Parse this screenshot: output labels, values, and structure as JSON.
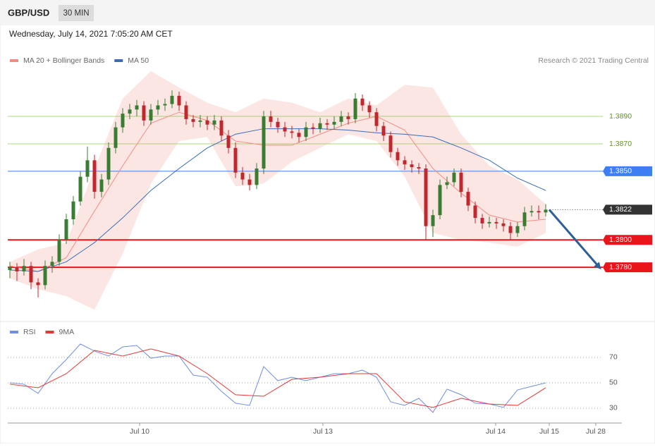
{
  "header": {
    "symbol": "GBP/USD",
    "timeframe": "30 MIN",
    "timestamp": "Wednesday, July 14, 2021 7:05:20 AM CET",
    "credit": "Research © 2021 Trading Central"
  },
  "chart_data": [
    {
      "type": "candlestick",
      "xlim": [
        -0.3,
        86.8
      ],
      "ylim": [
        1.3741,
        1.3926
      ],
      "up_color": "#3a7d32",
      "down_color": "#c0282d",
      "candles": [
        [
          1.3778,
          1.3784,
          1.3772,
          1.378
        ],
        [
          1.378,
          1.3783,
          1.377,
          1.3777
        ],
        [
          1.3777,
          1.3786,
          1.3774,
          1.3781
        ],
        [
          1.3781,
          1.3784,
          1.3764,
          1.3769
        ],
        [
          1.3769,
          1.3772,
          1.3758,
          1.3767
        ],
        [
          1.3767,
          1.3785,
          1.3764,
          1.3781
        ],
        [
          1.3781,
          1.3788,
          1.3776,
          1.3784
        ],
        [
          1.3784,
          1.3804,
          1.3781,
          1.38
        ],
        [
          1.38,
          1.3819,
          1.3797,
          1.3815
        ],
        [
          1.3815,
          1.3832,
          1.3811,
          1.3828
        ],
        [
          1.3828,
          1.385,
          1.3825,
          1.3846
        ],
        [
          1.3846,
          1.3868,
          1.3842,
          1.3858
        ],
        [
          1.3858,
          1.3862,
          1.383,
          1.3835
        ],
        [
          1.3835,
          1.3848,
          1.3831,
          1.3844
        ],
        [
          1.3844,
          1.3871,
          1.384,
          1.3867
        ],
        [
          1.3867,
          1.3886,
          1.3863,
          1.3882
        ],
        [
          1.3882,
          1.3896,
          1.3878,
          1.3892
        ],
        [
          1.3892,
          1.3899,
          1.3888,
          1.3895
        ],
        [
          1.3895,
          1.3902,
          1.389,
          1.3898
        ],
        [
          1.3898,
          1.3901,
          1.3883,
          1.3887
        ],
        [
          1.3887,
          1.3899,
          1.3884,
          1.3895
        ],
        [
          1.3895,
          1.3902,
          1.3891,
          1.3898
        ],
        [
          1.3898,
          1.3903,
          1.3894,
          1.3899
        ],
        [
          1.3899,
          1.3909,
          1.3896,
          1.3905
        ],
        [
          1.3905,
          1.3908,
          1.3894,
          1.3898
        ],
        [
          1.3898,
          1.3901,
          1.3884,
          1.3888
        ],
        [
          1.3888,
          1.3891,
          1.3882,
          1.3886
        ],
        [
          1.3886,
          1.3891,
          1.3882,
          1.3887
        ],
        [
          1.3887,
          1.389,
          1.388,
          1.3884
        ],
        [
          1.3884,
          1.3891,
          1.388,
          1.3887
        ],
        [
          1.3887,
          1.389,
          1.3872,
          1.3876
        ],
        [
          1.3876,
          1.388,
          1.3863,
          1.3867
        ],
        [
          1.3867,
          1.3871,
          1.3845,
          1.3849
        ],
        [
          1.3849,
          1.3853,
          1.384,
          1.3844
        ],
        [
          1.3844,
          1.3848,
          1.3836,
          1.384
        ],
        [
          1.384,
          1.3856,
          1.3837,
          1.3852
        ],
        [
          1.3852,
          1.3894,
          1.3848,
          1.389
        ],
        [
          1.389,
          1.3894,
          1.3882,
          1.3886
        ],
        [
          1.3886,
          1.3889,
          1.3878,
          1.3882
        ],
        [
          1.3882,
          1.3886,
          1.3875,
          1.3879
        ],
        [
          1.3879,
          1.3883,
          1.3874,
          1.3878
        ],
        [
          1.3878,
          1.3881,
          1.3871,
          1.3875
        ],
        [
          1.3875,
          1.3886,
          1.3872,
          1.3882
        ],
        [
          1.3882,
          1.3885,
          1.3877,
          1.3881
        ],
        [
          1.3881,
          1.3889,
          1.3878,
          1.3885
        ],
        [
          1.3885,
          1.3888,
          1.388,
          1.3884
        ],
        [
          1.3884,
          1.389,
          1.3881,
          1.3886
        ],
        [
          1.3886,
          1.3894,
          1.3883,
          1.389
        ],
        [
          1.389,
          1.3893,
          1.3884,
          1.3888
        ],
        [
          1.3888,
          1.3907,
          1.3885,
          1.3903
        ],
        [
          1.3903,
          1.3906,
          1.3894,
          1.3898
        ],
        [
          1.3898,
          1.3901,
          1.3889,
          1.3893
        ],
        [
          1.3893,
          1.3896,
          1.3879,
          1.3883
        ],
        [
          1.3883,
          1.3886,
          1.3872,
          1.3876
        ],
        [
          1.3876,
          1.3879,
          1.386,
          1.3864
        ],
        [
          1.3864,
          1.3867,
          1.3854,
          1.3858
        ],
        [
          1.3858,
          1.3861,
          1.3851,
          1.3855
        ],
        [
          1.3855,
          1.3858,
          1.3849,
          1.3853
        ],
        [
          1.3853,
          1.3856,
          1.3848,
          1.3852
        ],
        [
          1.3852,
          1.3855,
          1.38,
          1.381
        ],
        [
          1.381,
          1.3822,
          1.3802,
          1.3818
        ],
        [
          1.3818,
          1.3844,
          1.3815,
          1.384
        ],
        [
          1.384,
          1.3846,
          1.3837,
          1.3842
        ],
        [
          1.3842,
          1.3852,
          1.3839,
          1.3849
        ],
        [
          1.3849,
          1.3852,
          1.3831,
          1.3835
        ],
        [
          1.3835,
          1.3838,
          1.3821,
          1.3825
        ],
        [
          1.3825,
          1.3828,
          1.3812,
          1.3816
        ],
        [
          1.3816,
          1.3819,
          1.3808,
          1.3812
        ],
        [
          1.3812,
          1.3817,
          1.3809,
          1.3813
        ],
        [
          1.3813,
          1.3816,
          1.3808,
          1.3812
        ],
        [
          1.3812,
          1.3815,
          1.3806,
          1.381
        ],
        [
          1.381,
          1.3813,
          1.38,
          1.3805
        ],
        [
          1.3805,
          1.3813,
          1.3802,
          1.381
        ],
        [
          1.381,
          1.3824,
          1.3807,
          1.382
        ],
        [
          1.382,
          1.3825,
          1.3817,
          1.3821
        ],
        [
          1.3821,
          1.3825,
          1.3815,
          1.382
        ],
        [
          1.382,
          1.3826,
          1.3817,
          1.3822
        ]
      ],
      "series": [
        {
          "name": "MA 20 + Bollinger Bands",
          "color": "#f28b82",
          "x": [
            0,
            4,
            8,
            12,
            16,
            20,
            24,
            28,
            32,
            36,
            40,
            44,
            48,
            52,
            56,
            60,
            64,
            68,
            72,
            76
          ],
          "values": [
            1.3781,
            1.3777,
            1.3787,
            1.3821,
            1.3854,
            1.3885,
            1.3893,
            1.3887,
            1.3872,
            1.3869,
            1.3869,
            1.3877,
            1.3885,
            1.389,
            1.388,
            1.3852,
            1.3834,
            1.3818,
            1.3813,
            1.3815
          ],
          "upper": [
            1.3784,
            1.3793,
            1.3798,
            1.3852,
            1.3903,
            1.3923,
            1.3911,
            1.39,
            1.3893,
            1.3903,
            1.39,
            1.3893,
            1.3903,
            1.3898,
            1.3913,
            1.3911,
            1.3877,
            1.3854,
            1.3844,
            1.3826
          ],
          "lower": [
            1.3772,
            1.3764,
            1.3759,
            1.3749,
            1.379,
            1.3841,
            1.3872,
            1.3875,
            1.3839,
            1.3841,
            1.3857,
            1.3867,
            1.3877,
            1.3872,
            1.3846,
            1.3805,
            1.38,
            1.3798,
            1.3795,
            1.3805
          ]
        },
        {
          "name": "MA 50",
          "color": "#3b6db5",
          "x": [
            0,
            4,
            8,
            12,
            16,
            20,
            24,
            28,
            32,
            36,
            40,
            44,
            48,
            52,
            56,
            60,
            64,
            68,
            72,
            76
          ],
          "values": [
            1.3778,
            1.3777,
            1.3784,
            1.3798,
            1.3816,
            1.3836,
            1.3852,
            1.3867,
            1.3877,
            1.3881,
            1.3881,
            1.3881,
            1.388,
            1.3878,
            1.3877,
            1.3875,
            1.3867,
            1.3858,
            1.3845,
            1.3836
          ]
        }
      ],
      "levels": [
        {
          "value": 1.389,
          "label": "1.3890",
          "color": "#8bc34a",
          "box": false,
          "style": "solid"
        },
        {
          "value": 1.387,
          "label": "1.3870",
          "color": "#8bc34a",
          "box": false,
          "style": "solid"
        },
        {
          "value": 1.385,
          "label": "1.3850",
          "color": "#3d7ef2",
          "box": true,
          "style": "solid"
        },
        {
          "value": 1.3822,
          "label": "1.3822",
          "color": "#333333",
          "box": true,
          "style": "dotted"
        },
        {
          "value": 1.38,
          "label": "1.3800",
          "color": "#e8161b",
          "box": true,
          "style": "thick"
        },
        {
          "value": 1.378,
          "label": "1.3780",
          "color": "#e8161b",
          "box": true,
          "style": "thick"
        }
      ],
      "forecast": {
        "x": [
          76.5,
          83.6
        ],
        "values": [
          1.3822,
          1.378
        ],
        "color": "#2f5f98"
      }
    },
    {
      "type": "line",
      "xlim": [
        -0.3,
        86.8
      ],
      "ylim": [
        18.3,
        96.1
      ],
      "yticks": [
        30,
        50,
        70
      ],
      "grid": true,
      "xticks": [
        {
          "value": 18.4,
          "label": "Jul 10"
        },
        {
          "value": 44.4,
          "label": "Jul 13"
        },
        {
          "value": 68.9,
          "label": "Jul 14"
        },
        {
          "value": 76.5,
          "label": "Jul 15"
        },
        {
          "value": 83.1,
          "label": "Jul 28"
        }
      ],
      "series": [
        {
          "name": "RSI",
          "color": "#6f8fe0",
          "x": [
            0,
            2,
            4,
            6,
            8,
            10,
            12,
            14,
            16,
            18,
            20,
            22,
            24,
            26,
            28,
            30,
            32,
            34,
            36,
            38,
            40,
            42,
            44,
            46,
            48,
            50,
            52,
            54,
            56,
            58,
            60,
            62,
            64,
            66,
            68,
            70,
            72,
            74,
            76
          ],
          "values": [
            50,
            48.9,
            41.7,
            57.2,
            68.3,
            80.6,
            75,
            71.1,
            78.3,
            79.4,
            69.4,
            71.1,
            71.1,
            56.1,
            54.4,
            43.3,
            33.9,
            32.2,
            62.8,
            51.7,
            54.4,
            51.7,
            54.4,
            57.2,
            57.2,
            60,
            54.4,
            35,
            32.2,
            37.8,
            26.7,
            45,
            40.6,
            33.9,
            33.3,
            30.6,
            44.4,
            47.2,
            50
          ]
        },
        {
          "name": "9MA",
          "color": "#e53935",
          "x": [
            0,
            4,
            8,
            12,
            16,
            20,
            24,
            28,
            32,
            36,
            40,
            44,
            48,
            52,
            56,
            60,
            64,
            68,
            72,
            76
          ],
          "values": [
            48.9,
            46.1,
            57.2,
            75.6,
            71.1,
            76.7,
            71.1,
            57.2,
            40.6,
            39.4,
            52.8,
            54.4,
            57.2,
            57.2,
            35,
            30.6,
            37.8,
            33.3,
            32.2,
            46.1
          ]
        }
      ]
    }
  ]
}
